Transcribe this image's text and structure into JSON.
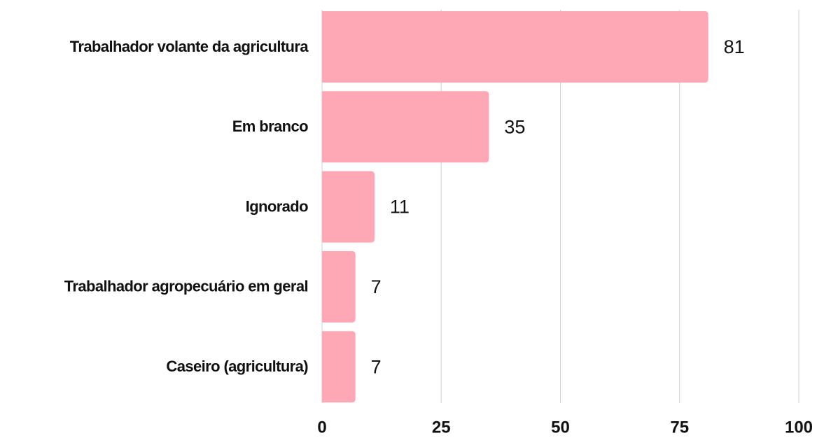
{
  "chart_data": {
    "type": "barh",
    "categories": [
      "Trabalhador volante da agricultura",
      "Em branco",
      "Ignorado",
      "Trabalhador agropecuário em geral",
      "Caseiro (agricultura)"
    ],
    "values": [
      81,
      35,
      11,
      7,
      7
    ],
    "color": "#ffa8b5",
    "xlim": [
      0,
      100
    ],
    "xticks": [
      0,
      25,
      50,
      75,
      100
    ],
    "grid": true
  }
}
